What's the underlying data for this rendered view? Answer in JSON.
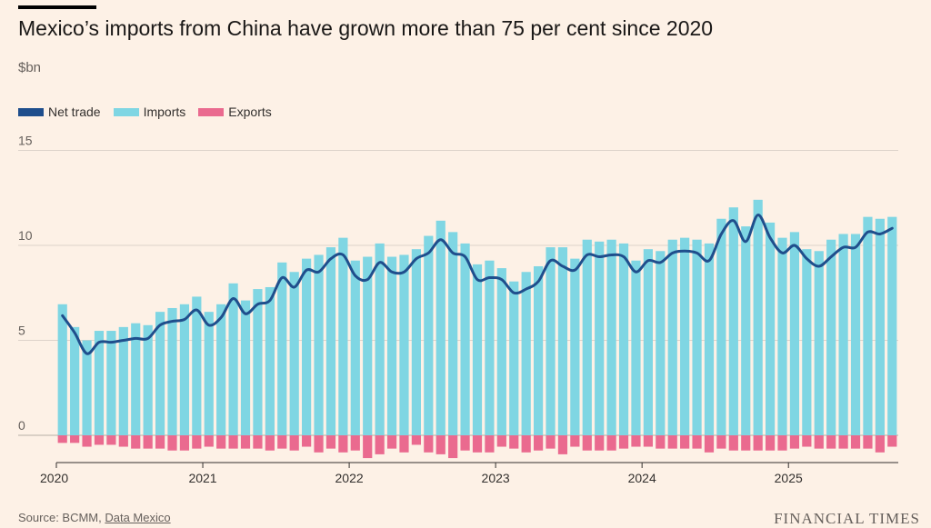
{
  "header": {
    "title": "Mexico’s imports from China have grown more than 75 per cent since 2020",
    "unit": "$bn"
  },
  "colors": {
    "net": "#1f4e8c",
    "imports": "#7fd6e3",
    "exports": "#ea6a8f",
    "grid": "#d9d0c7",
    "background": "#fdf1e6"
  },
  "footer": {
    "source_prefix": "Source: BCMM, ",
    "source_link": "Data Mexico",
    "brand": "FINANCIAL TIMES"
  },
  "chart_data": {
    "type": "bar",
    "subtype": "stacked bar with line overlay",
    "x_start": "2020-01",
    "x_end": "2025-09",
    "ylim": [
      -1,
      15
    ],
    "yticks": [
      0,
      5,
      10,
      15
    ],
    "xticks": [
      "2020",
      "2021",
      "2022",
      "2023",
      "2024",
      "2025"
    ],
    "grid": true,
    "legend_position": "top-left",
    "series": [
      {
        "name": "Net trade",
        "type": "line",
        "color": "#1f4e8c",
        "values": [
          6.3,
          5.4,
          4.3,
          4.9,
          4.9,
          5.0,
          5.1,
          5.1,
          5.8,
          6.0,
          6.1,
          6.6,
          5.8,
          6.2,
          7.2,
          6.4,
          6.9,
          7.1,
          8.3,
          7.8,
          8.7,
          8.6,
          9.3,
          9.5,
          8.4,
          8.2,
          9.1,
          8.6,
          8.6,
          9.3,
          9.6,
          10.3,
          9.6,
          9.4,
          8.2,
          8.3,
          8.2,
          7.5,
          7.7,
          8.1,
          9.2,
          8.9,
          8.7,
          9.5,
          9.4,
          9.5,
          9.4,
          8.6,
          9.2,
          9.1,
          9.6,
          9.7,
          9.6,
          9.2,
          10.6,
          11.3,
          10.2,
          11.6,
          10.4,
          9.6,
          10.0,
          9.3,
          8.9,
          9.4,
          9.9,
          9.9,
          10.7,
          10.6,
          10.9
        ]
      },
      {
        "name": "Imports",
        "type": "bar",
        "color": "#7fd6e3",
        "values": [
          6.9,
          5.7,
          5.0,
          5.5,
          5.5,
          5.7,
          5.9,
          5.8,
          6.5,
          6.7,
          6.9,
          7.3,
          6.5,
          6.9,
          8.0,
          7.1,
          7.7,
          7.8,
          9.1,
          8.6,
          9.3,
          9.5,
          9.9,
          10.4,
          9.2,
          9.4,
          10.1,
          9.4,
          9.5,
          9.8,
          10.5,
          11.3,
          10.7,
          10.1,
          9.0,
          9.2,
          8.8,
          8.1,
          8.6,
          8.9,
          9.9,
          9.9,
          9.3,
          10.3,
          10.2,
          10.3,
          10.1,
          9.2,
          9.8,
          9.7,
          10.3,
          10.4,
          10.3,
          10.1,
          11.4,
          12.0,
          11.0,
          12.4,
          11.2,
          10.4,
          10.7,
          9.8,
          9.7,
          10.3,
          10.6,
          10.6,
          11.5,
          11.4,
          11.5
        ]
      },
      {
        "name": "Exports",
        "type": "bar",
        "color": "#ea6a8f",
        "values": [
          -0.4,
          -0.4,
          -0.6,
          -0.5,
          -0.5,
          -0.6,
          -0.7,
          -0.7,
          -0.7,
          -0.8,
          -0.8,
          -0.7,
          -0.6,
          -0.7,
          -0.7,
          -0.7,
          -0.7,
          -0.8,
          -0.7,
          -0.8,
          -0.6,
          -0.9,
          -0.7,
          -0.9,
          -0.8,
          -1.2,
          -1.0,
          -0.7,
          -0.9,
          -0.5,
          -0.9,
          -1.0,
          -1.2,
          -0.8,
          -0.9,
          -0.9,
          -0.6,
          -0.7,
          -0.9,
          -0.8,
          -0.7,
          -1.0,
          -0.6,
          -0.8,
          -0.8,
          -0.8,
          -0.7,
          -0.6,
          -0.6,
          -0.7,
          -0.7,
          -0.7,
          -0.7,
          -0.9,
          -0.7,
          -0.8,
          -0.8,
          -0.8,
          -0.8,
          -0.8,
          -0.7,
          -0.6,
          -0.7,
          -0.7,
          -0.7,
          -0.7,
          -0.7,
          -0.9,
          -0.6
        ]
      }
    ]
  }
}
